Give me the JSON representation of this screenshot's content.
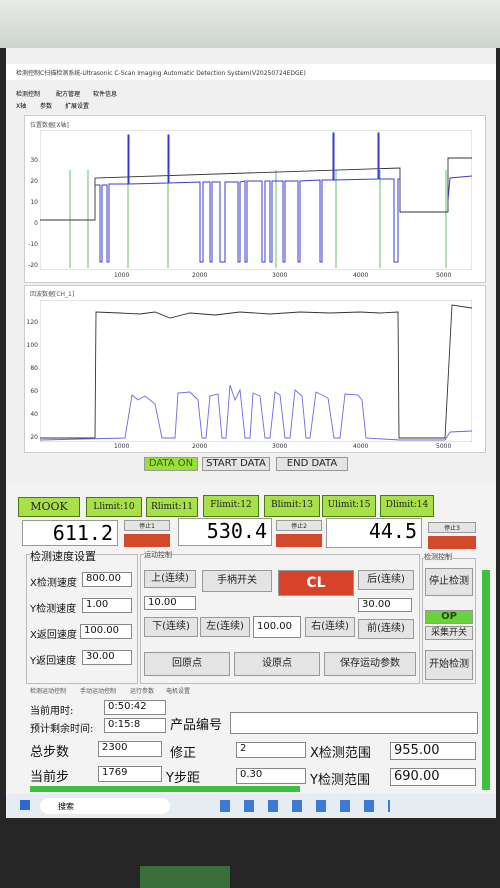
{
  "window": {
    "title": "检测控制C扫描检测系统-Ultrasonic C-Scan Imaging Automatic Detection System(V20250724EDGE)",
    "menu": [
      "检测控制",
      "配方管理",
      "软件信息"
    ],
    "tabs": [
      "X轴",
      "参数",
      "扩展设置"
    ]
  },
  "position_plot": {
    "title": "位置数据[X轴]",
    "yticks": [
      "30",
      "20",
      "10",
      "0",
      "-10",
      "-20"
    ],
    "xticks": [
      "1000",
      "2000",
      "3000",
      "4000",
      "5000"
    ]
  },
  "echo_plot": {
    "title": "回波数据[CH_1]",
    "yticks": [
      "120",
      "100",
      "80",
      "60",
      "40",
      "20"
    ],
    "xticks": [
      "1000",
      "2000",
      "3000",
      "4000",
      "5000"
    ]
  },
  "data_buttons": [
    "DATA ON",
    "START DATA",
    "END DATA"
  ],
  "limits": [
    "MOOK",
    "Llimit:10",
    "Rlimit:11",
    "Flimit:12",
    "Blimit:13",
    "Ulimit:15",
    "Dlimit:14"
  ],
  "readouts": [
    {
      "value": "611.2",
      "stop": "停止1"
    },
    {
      "value": "530.4",
      "stop": "停止2"
    },
    {
      "value": "44.5",
      "stop": "停止3"
    }
  ],
  "speed": {
    "title": "检测速度设置",
    "rows": [
      {
        "label": "X检测速度",
        "value": "800.00"
      },
      {
        "label": "Y检测速度",
        "value": "1.00"
      },
      {
        "label": "X返回速度",
        "value": "100.00"
      },
      {
        "label": "Y返回速度",
        "value": "30.00"
      }
    ]
  },
  "motion": {
    "title": "运动控制",
    "up": "上(连续)",
    "handle": "手柄开关",
    "cl": "CL",
    "back": "后(连续)",
    "step_up": "10.00",
    "step_back": "30.00",
    "down": "下(连续)",
    "left": "左(连续)",
    "step_left": "100.00",
    "right": "右(连续)",
    "front": "前(连续)",
    "home": "回原点",
    "set_home": "设原点",
    "save": "保存运动参数"
  },
  "detect": {
    "title": "检测控制",
    "stop": "停止检测",
    "op": "OP",
    "acquire": "采集开关",
    "start": "开始检测"
  },
  "bottom_tabs": [
    "检测运动控制",
    "手动运动控制",
    "运行参数",
    "电机设置"
  ],
  "info": {
    "elapsed_label": "当前用时:",
    "elapsed": "0:50:42",
    "remaining_label": "预计剩余时间:",
    "remaining": "0:15:8",
    "product_label": "产品编号",
    "total_steps_label": "总步数",
    "total_steps": "2300",
    "correction_label": "修正",
    "correction": "2",
    "x_range_label": "X检测范围",
    "x_range": "955.00",
    "current_step_label": "当前步",
    "current_step": "1769",
    "y_step_label": "Y步距",
    "y_step": "0.30",
    "y_range_label": "Y检测范围",
    "y_range": "690.00"
  },
  "taskbar": {
    "search": "搜索"
  }
}
